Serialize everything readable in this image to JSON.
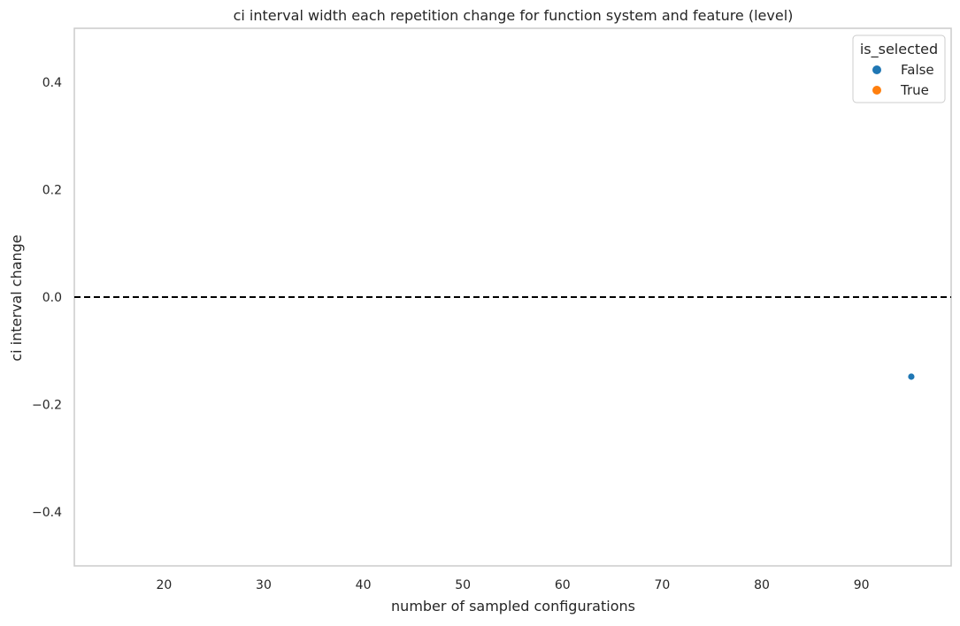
{
  "chart_data": {
    "type": "scatter",
    "title": "ci interval width each repetition change for function system and feature (level)",
    "xlabel": "number of sampled configurations",
    "ylabel": "ci interval change",
    "xlim": [
      11,
      99
    ],
    "ylim": [
      -0.5,
      0.5
    ],
    "xticks": [
      20,
      30,
      40,
      50,
      60,
      70,
      80,
      90
    ],
    "xtick_labels": [
      "20",
      "30",
      "40",
      "50",
      "60",
      "70",
      "80",
      "90"
    ],
    "yticks": [
      -0.4,
      -0.2,
      0.0,
      0.2,
      0.4
    ],
    "ytick_labels": [
      "−0.4",
      "−0.2",
      "0.0",
      "0.2",
      "0.4"
    ],
    "grid": false,
    "reference_line": {
      "y": 0.0,
      "style": "dashed",
      "color": "#000000"
    },
    "legend": {
      "title": "is_selected",
      "placement": "top-right",
      "entries": [
        {
          "label": "False",
          "color": "#1f77b4"
        },
        {
          "label": "True",
          "color": "#ff7f0e"
        }
      ]
    },
    "series": [
      {
        "name": "False",
        "color": "#1f77b4",
        "points": [
          {
            "x": 95,
            "y": -0.148
          }
        ]
      },
      {
        "name": "True",
        "color": "#ff7f0e",
        "points": []
      }
    ]
  }
}
